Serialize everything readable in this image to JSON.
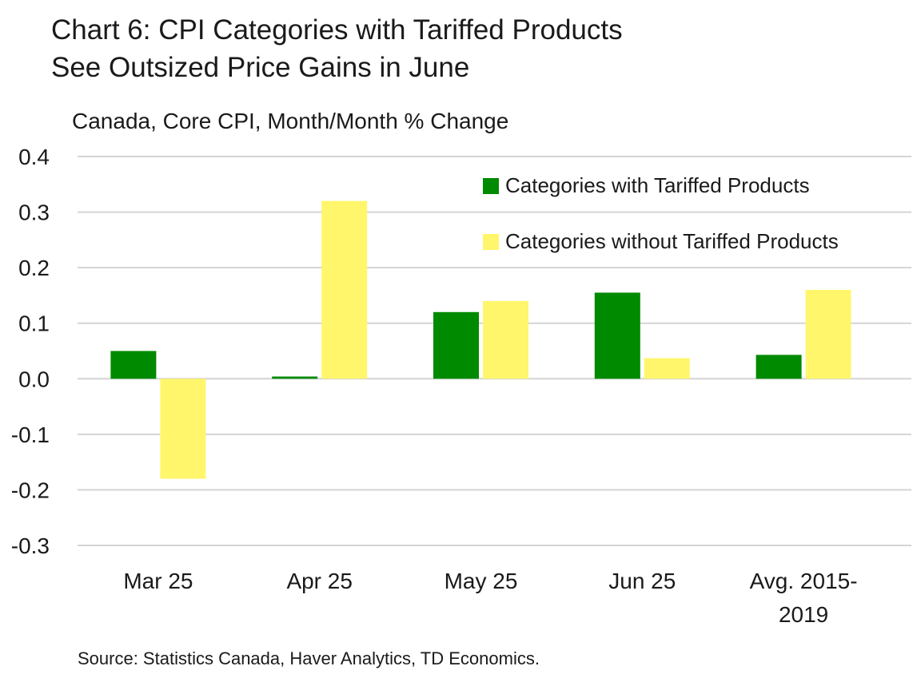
{
  "chart_data": {
    "type": "bar",
    "title_lines": [
      "Chart 6: CPI Categories with Tariffed Products",
      "See Outsized Price Gains in June"
    ],
    "subtitle": "Canada, Core CPI, Month/Month % Change",
    "categories": [
      [
        "Mar 25"
      ],
      [
        "Apr 25"
      ],
      [
        "May 25"
      ],
      [
        "Jun 25"
      ],
      [
        "Avg. 2015-",
        "2019"
      ]
    ],
    "series": [
      {
        "name": "Categories with Tariffed Products",
        "color": "#008A00",
        "values": [
          0.05,
          0.004,
          0.12,
          0.155,
          0.043
        ]
      },
      {
        "name": "Categories without Tariffed Products",
        "color": "#FFF66B",
        "values": [
          -0.18,
          0.32,
          0.14,
          0.037,
          0.16
        ]
      }
    ],
    "ylim": [
      -0.3,
      0.4
    ],
    "yticks": [
      "-0.3",
      "-0.2",
      "-0.1",
      "0.0",
      "0.1",
      "0.2",
      "0.3",
      "0.4"
    ],
    "grid": true,
    "legend_position": "top-right",
    "source": "Source: Statistics Canada, Haver Analytics, TD Economics."
  }
}
